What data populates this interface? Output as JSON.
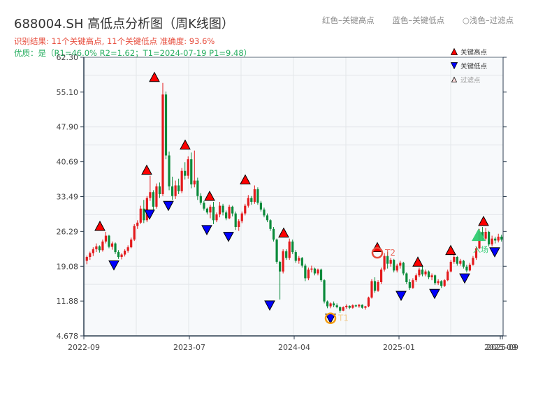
{
  "header": {
    "title": "688004.SH 高低点分析图（周K线图）",
    "result_line": "识别结果: 11个关键高点, 11个关键低点  准确度: 93.6%",
    "quality_line": "优质：是（R1=46.0%  R2=1.62；T1=2024-07-19 P1=9.48）"
  },
  "top_legend": {
    "items": [
      "红色–关键高点",
      "蓝色–关键低点",
      "○浅色–过滤点"
    ]
  },
  "legend": {
    "items": [
      {
        "label": "关键高点",
        "marker": "triangle-up",
        "color": "#ff0000"
      },
      {
        "label": "关键低点",
        "marker": "triangle-down",
        "color": "#0000ff"
      },
      {
        "label": "过滤点",
        "marker": "triangle-up-outline",
        "color": "#ffcccc"
      }
    ]
  },
  "colors": {
    "up": "#e31a1c",
    "down": "#0a8a3a",
    "high_marker": "#ff0000",
    "low_marker": "#0000ff",
    "t1_ring": "#f39c12",
    "t2_ring": "#e74c3c",
    "entry": "#2ecc71",
    "axis": "#2c3e50",
    "grid": "#e3e6ea",
    "plot_bg": "#f7f9fb"
  },
  "chart_data": {
    "type": "candlestick",
    "title": "688004.SH 高低点分析图（周K线图）",
    "xlabel": "",
    "ylabel": "",
    "ylim": [
      4.678,
      62.3
    ],
    "yticks": [
      4.678,
      11.88,
      19.08,
      26.29,
      33.49,
      40.69,
      47.9,
      55.1,
      62.3
    ],
    "ytick_labels": [
      "4.678",
      "11.88",
      "19.08",
      "26.29",
      "33.49",
      "40.69",
      "47.90",
      "55.10",
      "62.30"
    ],
    "xticks": [
      {
        "label": "2022-09",
        "x": 120
      },
      {
        "label": "2023-07",
        "x": 271
      },
      {
        "label": "2024-04",
        "x": 421
      },
      {
        "label": "2025-01",
        "x": 571
      },
      {
        "label": "2025-09",
        "x": 716
      },
      {
        "label": "2025-09",
        "x": 719
      }
    ],
    "grid": true,
    "legend_position": "upper right",
    "candles": [
      [
        20.2,
        21.3,
        19.5,
        21.0
      ],
      [
        21.0,
        22.1,
        20.4,
        21.8
      ],
      [
        21.8,
        23.0,
        21.2,
        22.6
      ],
      [
        22.6,
        23.8,
        22.0,
        23.2
      ],
      [
        23.2,
        23.4,
        21.9,
        22.4
      ],
      [
        22.4,
        24.6,
        22.1,
        24.2
      ],
      [
        24.2,
        26.2,
        23.8,
        25.4
      ],
      [
        25.4,
        25.6,
        22.8,
        23.1
      ],
      [
        23.1,
        24.2,
        22.5,
        23.8
      ],
      [
        23.8,
        24.0,
        21.6,
        22.0
      ],
      [
        22.0,
        22.4,
        20.6,
        21.0
      ],
      [
        21.0,
        21.8,
        20.5,
        21.5
      ],
      [
        21.5,
        22.6,
        21.1,
        22.3
      ],
      [
        22.3,
        23.4,
        21.9,
        23.0
      ],
      [
        23.0,
        25.0,
        22.8,
        24.6
      ],
      [
        24.6,
        27.8,
        24.3,
        27.4
      ],
      [
        27.4,
        28.6,
        26.8,
        28.1
      ],
      [
        28.1,
        31.6,
        27.8,
        31.0
      ],
      [
        31.0,
        32.8,
        28.0,
        28.6
      ],
      [
        28.6,
        33.6,
        28.2,
        33.2
      ],
      [
        33.2,
        37.8,
        32.6,
        34.4
      ],
      [
        34.4,
        34.8,
        30.6,
        31.4
      ],
      [
        31.4,
        36.2,
        31.0,
        35.6
      ],
      [
        35.6,
        36.4,
        33.2,
        34.0
      ],
      [
        34.0,
        57.0,
        33.6,
        54.6
      ],
      [
        54.6,
        55.2,
        41.2,
        42.0
      ],
      [
        42.0,
        42.8,
        34.8,
        35.6
      ],
      [
        35.6,
        37.6,
        32.8,
        33.6
      ],
      [
        33.6,
        36.8,
        33.0,
        35.8
      ],
      [
        35.8,
        37.2,
        34.0,
        34.6
      ],
      [
        34.6,
        39.4,
        34.2,
        38.8
      ],
      [
        38.8,
        40.6,
        37.0,
        37.8
      ],
      [
        37.8,
        41.8,
        37.2,
        41.2
      ],
      [
        41.2,
        42.6,
        35.2,
        36.0
      ],
      [
        36.0,
        43.0,
        35.4,
        36.8
      ],
      [
        36.8,
        37.4,
        32.8,
        33.6
      ],
      [
        33.6,
        34.2,
        31.8,
        32.2
      ],
      [
        32.2,
        32.6,
        30.6,
        31.0
      ],
      [
        31.0,
        31.2,
        29.8,
        30.2
      ],
      [
        30.2,
        31.8,
        29.0,
        31.4
      ],
      [
        31.4,
        32.4,
        27.8,
        28.6
      ],
      [
        28.6,
        30.2,
        28.2,
        29.8
      ],
      [
        29.8,
        32.4,
        29.2,
        31.6
      ],
      [
        31.6,
        32.0,
        29.6,
        30.2
      ],
      [
        30.2,
        30.6,
        28.6,
        29.0
      ],
      [
        29.0,
        31.8,
        28.8,
        31.4
      ],
      [
        31.4,
        31.6,
        29.4,
        30.0
      ],
      [
        30.0,
        30.4,
        26.6,
        27.2
      ],
      [
        27.2,
        28.8,
        26.4,
        28.4
      ],
      [
        28.4,
        30.4,
        28.0,
        30.0
      ],
      [
        30.0,
        32.0,
        29.6,
        31.6
      ],
      [
        31.6,
        33.8,
        31.2,
        33.2
      ],
      [
        33.2,
        33.6,
        31.8,
        32.4
      ],
      [
        32.4,
        35.8,
        32.0,
        35.0
      ],
      [
        35.0,
        35.4,
        31.8,
        32.2
      ],
      [
        32.2,
        32.6,
        30.4,
        30.8
      ],
      [
        30.8,
        31.2,
        29.2,
        29.6
      ],
      [
        29.6,
        30.0,
        28.2,
        28.6
      ],
      [
        28.6,
        28.8,
        26.4,
        26.8
      ],
      [
        26.8,
        27.2,
        24.2,
        24.6
      ],
      [
        24.6,
        24.8,
        19.6,
        20.0
      ],
      [
        20.0,
        20.2,
        12.2,
        18.0
      ],
      [
        18.0,
        22.6,
        17.6,
        22.2
      ],
      [
        22.2,
        22.6,
        20.4,
        20.8
      ],
      [
        20.8,
        24.8,
        20.4,
        24.2
      ],
      [
        24.2,
        24.6,
        21.6,
        22.0
      ],
      [
        22.0,
        22.4,
        19.8,
        20.2
      ],
      [
        20.2,
        21.2,
        19.6,
        20.8
      ],
      [
        20.8,
        21.0,
        18.8,
        19.2
      ],
      [
        19.2,
        19.6,
        16.0,
        16.6
      ],
      [
        16.6,
        18.8,
        16.2,
        18.4
      ],
      [
        18.4,
        19.2,
        17.8,
        18.6
      ],
      [
        18.6,
        18.8,
        17.2,
        17.6
      ],
      [
        17.6,
        18.6,
        17.2,
        18.4
      ],
      [
        18.4,
        18.6,
        15.8,
        16.2
      ],
      [
        16.2,
        16.4,
        11.4,
        11.8
      ],
      [
        11.8,
        12.0,
        10.4,
        10.8
      ],
      [
        10.8,
        11.6,
        10.4,
        11.4
      ],
      [
        11.4,
        11.8,
        10.6,
        11.0
      ],
      [
        11.0,
        11.4,
        10.4,
        10.6
      ],
      [
        10.6,
        10.8,
        9.48,
        9.9
      ],
      [
        9.9,
        10.8,
        9.8,
        10.6
      ],
      [
        10.6,
        11.2,
        10.3,
        10.9
      ],
      [
        10.9,
        11.0,
        10.2,
        10.5
      ],
      [
        10.5,
        11.2,
        10.3,
        11.0
      ],
      [
        11.0,
        11.2,
        10.6,
        10.8
      ],
      [
        10.8,
        11.3,
        10.5,
        11.1
      ],
      [
        11.1,
        11.2,
        10.3,
        10.5
      ],
      [
        10.5,
        10.9,
        10.1,
        10.8
      ],
      [
        10.8,
        12.8,
        10.6,
        12.6
      ],
      [
        12.6,
        16.4,
        12.4,
        16.0
      ],
      [
        16.0,
        16.8,
        13.6,
        14.0
      ],
      [
        14.0,
        16.2,
        13.8,
        15.8
      ],
      [
        15.8,
        18.8,
        15.4,
        18.4
      ],
      [
        18.4,
        21.8,
        18.0,
        21.2
      ],
      [
        21.2,
        22.0,
        18.6,
        19.6
      ],
      [
        19.6,
        20.8,
        19.0,
        20.4
      ],
      [
        20.4,
        20.6,
        17.8,
        18.2
      ],
      [
        18.2,
        19.6,
        17.8,
        19.2
      ],
      [
        19.2,
        20.2,
        18.6,
        19.8
      ],
      [
        19.8,
        20.0,
        17.2,
        17.6
      ],
      [
        17.6,
        17.8,
        15.4,
        15.8
      ],
      [
        15.8,
        16.4,
        14.2,
        14.6
      ],
      [
        14.6,
        16.6,
        14.4,
        16.2
      ],
      [
        16.2,
        17.6,
        15.8,
        17.2
      ],
      [
        17.2,
        18.8,
        16.8,
        18.4
      ],
      [
        18.4,
        19.2,
        17.0,
        17.4
      ],
      [
        17.4,
        18.4,
        17.0,
        18.0
      ],
      [
        18.0,
        18.2,
        16.4,
        16.8
      ],
      [
        16.8,
        17.6,
        16.2,
        17.2
      ],
      [
        17.2,
        17.4,
        15.2,
        15.6
      ],
      [
        15.6,
        16.4,
        15.2,
        16.0
      ],
      [
        16.0,
        16.2,
        14.6,
        15.0
      ],
      [
        15.0,
        16.4,
        14.8,
        16.2
      ],
      [
        16.2,
        18.4,
        16.0,
        18.0
      ],
      [
        18.0,
        20.4,
        17.8,
        20.0
      ],
      [
        20.0,
        21.4,
        19.6,
        21.0
      ],
      [
        21.0,
        21.2,
        19.2,
        19.6
      ],
      [
        19.6,
        20.6,
        19.2,
        20.2
      ],
      [
        20.2,
        20.4,
        18.6,
        19.0
      ],
      [
        19.0,
        19.4,
        17.8,
        18.2
      ],
      [
        18.2,
        19.8,
        18.0,
        19.4
      ],
      [
        19.4,
        21.2,
        19.2,
        20.8
      ],
      [
        20.8,
        23.2,
        20.4,
        22.8
      ],
      [
        22.8,
        26.8,
        22.6,
        26.2
      ],
      [
        26.2,
        27.2,
        24.4,
        24.8
      ],
      [
        24.8,
        27.0,
        24.4,
        26.2
      ],
      [
        26.2,
        26.4,
        23.2,
        23.6
      ],
      [
        23.6,
        25.4,
        23.2,
        24.8
      ],
      [
        24.8,
        25.2,
        23.8,
        24.4
      ],
      [
        24.4,
        25.8,
        24.0,
        25.2
      ],
      [
        25.2,
        25.6,
        24.2,
        24.6
      ]
    ],
    "key_highs": [
      {
        "x": 143,
        "price": 26.2
      },
      {
        "x": 210,
        "price": 37.8
      },
      {
        "x": 221,
        "price": 57.0
      },
      {
        "x": 265,
        "price": 43.0
      },
      {
        "x": 300,
        "price": 32.4
      },
      {
        "x": 351,
        "price": 35.8
      },
      {
        "x": 406,
        "price": 24.8
      },
      {
        "x": 540,
        "price": 21.8
      },
      {
        "x": 598,
        "price": 18.8
      },
      {
        "x": 645,
        "price": 21.2
      },
      {
        "x": 692,
        "price": 27.2
      }
    ],
    "key_lows": [
      {
        "x": 163,
        "price": 20.5
      },
      {
        "x": 214,
        "price": 31.0
      },
      {
        "x": 241,
        "price": 32.8
      },
      {
        "x": 296,
        "price": 27.8
      },
      {
        "x": 327,
        "price": 26.4
      },
      {
        "x": 386,
        "price": 12.2
      },
      {
        "x": 473,
        "price": 9.48
      },
      {
        "x": 574,
        "price": 14.2
      },
      {
        "x": 622,
        "price": 14.6
      },
      {
        "x": 665,
        "price": 17.8
      },
      {
        "x": 708,
        "price": 23.2
      }
    ],
    "annotations": [
      {
        "label": "T1",
        "x": 473,
        "price": 9.48,
        "ring": "#f39c12"
      },
      {
        "label": "T2",
        "x": 540,
        "price": 22.0,
        "ring": "#e74c3c"
      },
      {
        "label": "入场",
        "x": 685,
        "price": 24.3,
        "marker": "big-triangle-up",
        "color": "#2ecc71"
      }
    ]
  }
}
